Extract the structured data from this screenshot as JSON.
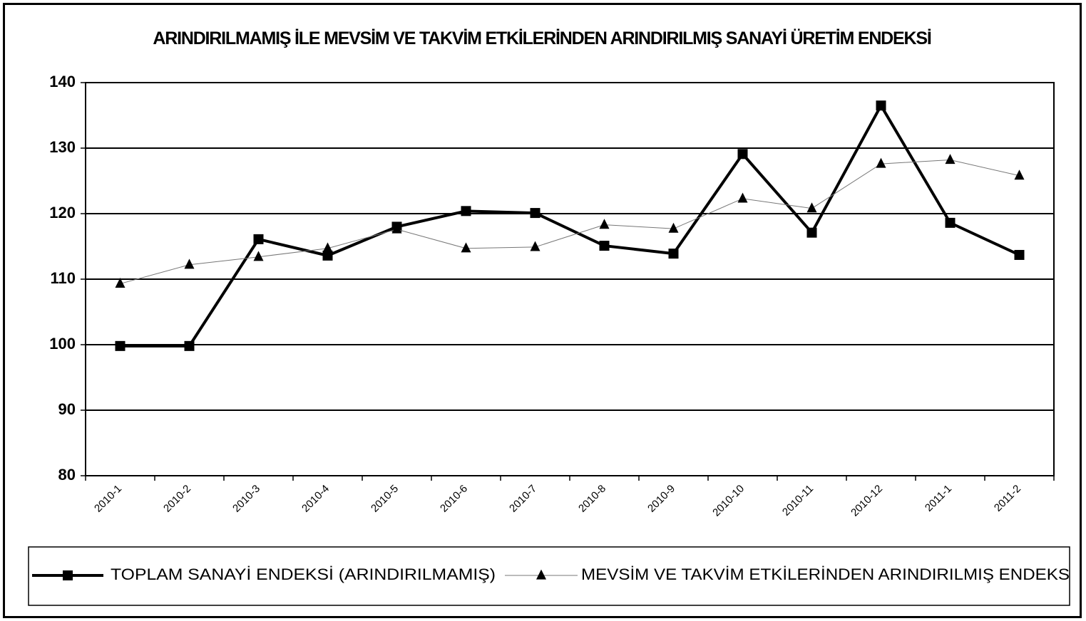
{
  "chart_data": {
    "type": "line",
    "title": "ARINDIRILMAMIŞ İLE MEVSİM VE TAKVİM ETKİLERİNDEN ARINDIRILMIŞ SANAYİ ÜRETİM ENDEKSİ",
    "categories": [
      "2010-1",
      "2010-2",
      "2010-3",
      "2010-4",
      "2010-5",
      "2010-6",
      "2010-7",
      "2010-8",
      "2010-9",
      "2010-10",
      "2010-11",
      "2010-12",
      "2011-1",
      "2011-2"
    ],
    "series": [
      {
        "name": "TOPLAM SANAYİ ENDEKSİ (ARINDIRILMAMIŞ)",
        "color": "#000000",
        "marker": "square",
        "values": [
          99.8,
          99.8,
          116.1,
          113.6,
          118.0,
          120.4,
          120.1,
          115.1,
          113.9,
          129.1,
          117.1,
          136.5,
          118.6,
          113.7
        ]
      },
      {
        "name": "MEVSİM VE TAKVİM ETKİLERİNDEN ARINDIRILMIŞ ENDEKS",
        "color": "#000000",
        "marker": "triangle",
        "values": [
          109.3,
          112.2,
          113.4,
          114.7,
          117.6,
          114.7,
          114.9,
          118.3,
          117.7,
          122.3,
          120.8,
          127.6,
          128.2,
          125.8
        ]
      }
    ],
    "ylim": [
      80,
      140
    ],
    "yticks": [
      80,
      90,
      100,
      110,
      120,
      130,
      140
    ],
    "grid": true,
    "legend": "bottom"
  }
}
